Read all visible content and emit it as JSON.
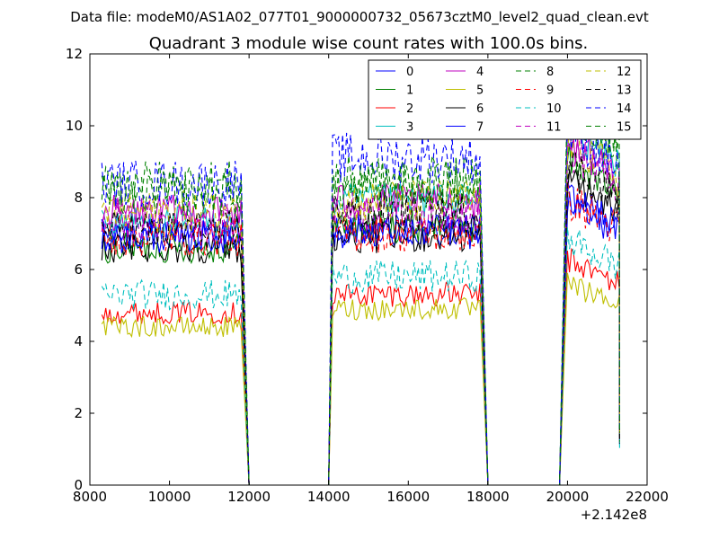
{
  "figure": {
    "suptitle": "Data file: modeM0/AS1A02_077T01_9000000732_05673cztM0_level2_quad_clean.evt"
  },
  "chart_data": {
    "type": "line",
    "title": "Quadrant 3 module wise count rates with 100.0s bins.",
    "xlabel": "",
    "ylabel": "",
    "x_offset_label": "+2.142e8",
    "xlim": [
      8000,
      22000
    ],
    "ylim": [
      0,
      12
    ],
    "x_ticks": [
      8000,
      10000,
      12000,
      14000,
      16000,
      18000,
      20000,
      22000
    ],
    "y_ticks": [
      0,
      2,
      4,
      6,
      8,
      10,
      12
    ],
    "x_tick_labels": [
      "8000",
      "10000",
      "12000",
      "14000",
      "16000",
      "18000",
      "20000",
      "22000"
    ],
    "y_tick_labels": [
      "0",
      "2",
      "4",
      "6",
      "8",
      "10",
      "12"
    ],
    "grid": false,
    "legend_position": "top-right",
    "legend_columns": 4,
    "segments": [
      {
        "start": 8300,
        "end": 11800,
        "drop_end": 12000
      },
      {
        "start": 14100,
        "end": 17800,
        "rise_start": 14000,
        "drop_end": 18000
      },
      {
        "start": 20000,
        "end": 21300,
        "rise_start": 19800
      }
    ],
    "series": [
      {
        "name": "0",
        "color": "#0000ff",
        "dash": "solid",
        "levels": [
          7.0,
          7.0,
          7.0
        ]
      },
      {
        "name": "1",
        "color": "#008000",
        "dash": "solid",
        "levels": [
          6.6,
          7.2,
          8.1
        ]
      },
      {
        "name": "2",
        "color": "#ff0000",
        "dash": "solid",
        "levels": [
          4.8,
          5.3,
          5.6
        ]
      },
      {
        "name": "3",
        "color": "#00bfbf",
        "dash": "solid",
        "levels": [
          7.3,
          7.9,
          8.9
        ]
      },
      {
        "name": "4",
        "color": "#bf00bf",
        "dash": "solid",
        "levels": [
          7.6,
          7.9,
          8.6
        ]
      },
      {
        "name": "5",
        "color": "#bfbf00",
        "dash": "solid",
        "levels": [
          4.4,
          4.9,
          5.0
        ]
      },
      {
        "name": "6",
        "color": "#000000",
        "dash": "solid",
        "levels": [
          6.6,
          6.9,
          7.6
        ]
      },
      {
        "name": "7",
        "color": "#0000ff",
        "dash": "solid",
        "levels": [
          6.9,
          7.1,
          7.2
        ]
      },
      {
        "name": "8",
        "color": "#008000",
        "dash": "dashed",
        "levels": [
          8.4,
          8.5,
          9.3
        ]
      },
      {
        "name": "9",
        "color": "#ff0000",
        "dash": "dashed",
        "levels": [
          6.9,
          7.0,
          7.1
        ]
      },
      {
        "name": "10",
        "color": "#00bfbf",
        "dash": "dashed",
        "levels": [
          5.3,
          5.8,
          6.1
        ]
      },
      {
        "name": "11",
        "color": "#bf00bf",
        "dash": "dashed",
        "levels": [
          7.3,
          7.6,
          8.4
        ]
      },
      {
        "name": "12",
        "color": "#bfbf00",
        "dash": "dashed",
        "levels": [
          7.6,
          7.9,
          8.6
        ]
      },
      {
        "name": "13",
        "color": "#000000",
        "dash": "dashed",
        "levels": [
          7.1,
          7.6,
          8.0
        ]
      },
      {
        "name": "14",
        "color": "#0000ff",
        "dash": "dashed",
        "levels": [
          8.4,
          9.1,
          8.9
        ]
      },
      {
        "name": "15",
        "color": "#008000",
        "dash": "dashed",
        "levels": [
          8.1,
          8.3,
          9.5
        ]
      }
    ]
  }
}
